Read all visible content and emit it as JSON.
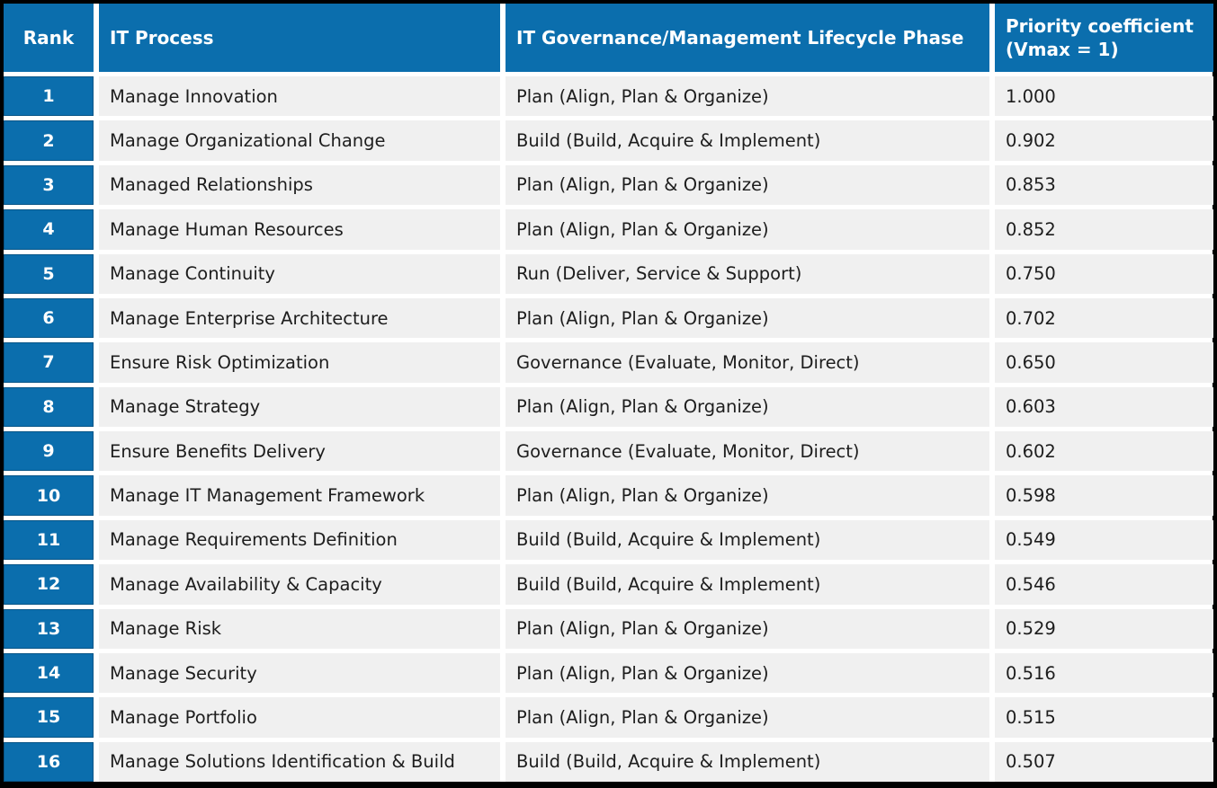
{
  "chart_data": {
    "type": "table",
    "columns": [
      "Rank",
      "IT Process",
      "IT Governance/Management Lifecycle Phase",
      "Priority coefficient (Vmax = 1)"
    ],
    "rows": [
      [
        "1",
        "Manage Innovation",
        "Plan (Align, Plan & Organize)",
        "1.000"
      ],
      [
        "2",
        "Manage Organizational Change",
        "Build (Build, Acquire & Implement)",
        "0.902"
      ],
      [
        "3",
        "Managed Relationships",
        "Plan (Align, Plan & Organize)",
        "0.853"
      ],
      [
        "4",
        "Manage Human Resources",
        "Plan (Align, Plan & Organize)",
        "0.852"
      ],
      [
        "5",
        "Manage Continuity",
        "Run (Deliver, Service & Support)",
        "0.750"
      ],
      [
        "6",
        "Manage Enterprise Architecture",
        "Plan (Align, Plan & Organize)",
        "0.702"
      ],
      [
        "7",
        "Ensure Risk Optimization",
        "Governance (Evaluate, Monitor, Direct)",
        "0.650"
      ],
      [
        "8",
        "Manage Strategy",
        "Plan (Align, Plan & Organize)",
        "0.603"
      ],
      [
        "9",
        "Ensure Benefits Delivery",
        "Governance (Evaluate, Monitor, Direct)",
        "0.602"
      ],
      [
        "10",
        "Manage IT Management Framework",
        "Plan (Align, Plan & Organize)",
        "0.598"
      ],
      [
        "11",
        "Manage Requirements Definition",
        "Build (Build, Acquire & Implement)",
        "0.549"
      ],
      [
        "12",
        "Manage Availability & Capacity",
        "Build (Build, Acquire & Implement)",
        "0.546"
      ],
      [
        "13",
        "Manage Risk",
        "Plan (Align, Plan & Organize)",
        "0.529"
      ],
      [
        "14",
        "Manage Security",
        "Plan (Align, Plan & Organize)",
        "0.516"
      ],
      [
        "15",
        "Manage Portfolio",
        "Plan (Align, Plan & Organize)",
        "0.515"
      ],
      [
        "16",
        "Manage Solutions Identification & Build",
        "Build (Build, Acquire & Implement)",
        "0.507"
      ]
    ]
  },
  "colors": {
    "header_bg": "#0b6ead",
    "rank_cell_bg": "#0b6ead",
    "row_bg": "#f0f0f0",
    "gap": "#ffffff",
    "outer_border": "#000000",
    "header_text": "#ffffff",
    "body_text": "#1d1d1d"
  }
}
